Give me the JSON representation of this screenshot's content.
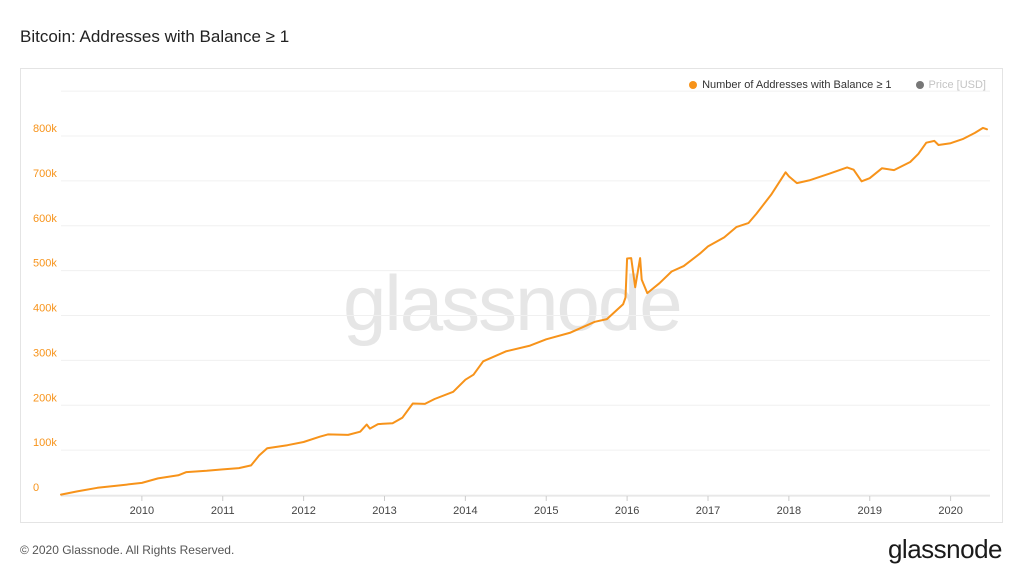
{
  "title": "Bitcoin: Addresses with Balance ≥ 1",
  "watermark": "glassnode",
  "footer": {
    "copyright": "© 2020 Glassnode. All Rights Reserved.",
    "brand": "glassnode"
  },
  "legend": [
    {
      "label": "Number of Addresses with Balance ≥ 1",
      "color": "#f7931a",
      "active": true
    },
    {
      "label": "Price [USD]",
      "color": "#777777",
      "active": false
    }
  ],
  "colors": {
    "series": "#f7931a",
    "axis_label": "#f7931a",
    "grid": "#f0f0f0"
  },
  "chart_data": {
    "type": "line",
    "title": "Bitcoin: Addresses with Balance ≥ 1",
    "xlabel": "",
    "ylabel": "",
    "ylim": [
      0,
      800000
    ],
    "xlim": [
      2009.0,
      2020.45
    ],
    "y_ticks": [
      {
        "value": 0,
        "label": "0"
      },
      {
        "value": 100000,
        "label": "100k"
      },
      {
        "value": 200000,
        "label": "200k"
      },
      {
        "value": 300000,
        "label": "300k"
      },
      {
        "value": 400000,
        "label": "400k"
      },
      {
        "value": 500000,
        "label": "500k"
      },
      {
        "value": 600000,
        "label": "600k"
      },
      {
        "value": 700000,
        "label": "700k"
      },
      {
        "value": 800000,
        "label": "800k"
      }
    ],
    "x_ticks": [
      {
        "value": 2010,
        "label": "2010"
      },
      {
        "value": 2011,
        "label": "2011"
      },
      {
        "value": 2012,
        "label": "2012"
      },
      {
        "value": 2013,
        "label": "2013"
      },
      {
        "value": 2014,
        "label": "2014"
      },
      {
        "value": 2015,
        "label": "2015"
      },
      {
        "value": 2016,
        "label": "2016"
      },
      {
        "value": 2017,
        "label": "2017"
      },
      {
        "value": 2018,
        "label": "2018"
      },
      {
        "value": 2019,
        "label": "2019"
      },
      {
        "value": 2020,
        "label": "2020"
      }
    ],
    "grid": true,
    "legend_position": "top-right",
    "series": [
      {
        "name": "Number of Addresses with Balance ≥ 1",
        "color": "#f7931a",
        "points": [
          [
            2009.0,
            1000
          ],
          [
            2009.2,
            8000
          ],
          [
            2009.45,
            16000
          ],
          [
            2009.7,
            21000
          ],
          [
            2010.0,
            27000
          ],
          [
            2010.2,
            37000
          ],
          [
            2010.45,
            44000
          ],
          [
            2010.55,
            51000
          ],
          [
            2010.8,
            54000
          ],
          [
            2011.0,
            57000
          ],
          [
            2011.2,
            60000
          ],
          [
            2011.35,
            66000
          ],
          [
            2011.45,
            88000
          ],
          [
            2011.55,
            104000
          ],
          [
            2011.8,
            111000
          ],
          [
            2012.0,
            118000
          ],
          [
            2012.2,
            130000
          ],
          [
            2012.3,
            135000
          ],
          [
            2012.55,
            134000
          ],
          [
            2012.7,
            141000
          ],
          [
            2012.78,
            157000
          ],
          [
            2012.82,
            148000
          ],
          [
            2012.92,
            158000
          ],
          [
            2013.1,
            160000
          ],
          [
            2013.22,
            172000
          ],
          [
            2013.35,
            204000
          ],
          [
            2013.5,
            203000
          ],
          [
            2013.62,
            214000
          ],
          [
            2013.85,
            230000
          ],
          [
            2014.0,
            257000
          ],
          [
            2014.1,
            268000
          ],
          [
            2014.22,
            298000
          ],
          [
            2014.5,
            320000
          ],
          [
            2014.8,
            333000
          ],
          [
            2015.0,
            347000
          ],
          [
            2015.3,
            362000
          ],
          [
            2015.6,
            386000
          ],
          [
            2015.75,
            392000
          ],
          [
            2015.95,
            425000
          ],
          [
            2015.98,
            440000
          ],
          [
            2016.0,
            527000
          ],
          [
            2016.05,
            528000
          ],
          [
            2016.1,
            463000
          ],
          [
            2016.16,
            528000
          ],
          [
            2016.18,
            480000
          ],
          [
            2016.25,
            450000
          ],
          [
            2016.4,
            472000
          ],
          [
            2016.55,
            498000
          ],
          [
            2016.7,
            510000
          ],
          [
            2016.9,
            538000
          ],
          [
            2017.0,
            554000
          ],
          [
            2017.2,
            574000
          ],
          [
            2017.35,
            597000
          ],
          [
            2017.5,
            606000
          ],
          [
            2017.6,
            627000
          ],
          [
            2017.78,
            669000
          ],
          [
            2017.96,
            719000
          ],
          [
            2018.0,
            710000
          ],
          [
            2018.1,
            695000
          ],
          [
            2018.25,
            701000
          ],
          [
            2018.5,
            716000
          ],
          [
            2018.72,
            730000
          ],
          [
            2018.8,
            725000
          ],
          [
            2018.9,
            699000
          ],
          [
            2019.0,
            706000
          ],
          [
            2019.15,
            728000
          ],
          [
            2019.3,
            724000
          ],
          [
            2019.5,
            742000
          ],
          [
            2019.6,
            760000
          ],
          [
            2019.7,
            785000
          ],
          [
            2019.8,
            789000
          ],
          [
            2019.85,
            780000
          ],
          [
            2020.0,
            784000
          ],
          [
            2020.15,
            793000
          ],
          [
            2020.3,
            807000
          ],
          [
            2020.4,
            818000
          ],
          [
            2020.45,
            815000
          ]
        ]
      }
    ]
  }
}
